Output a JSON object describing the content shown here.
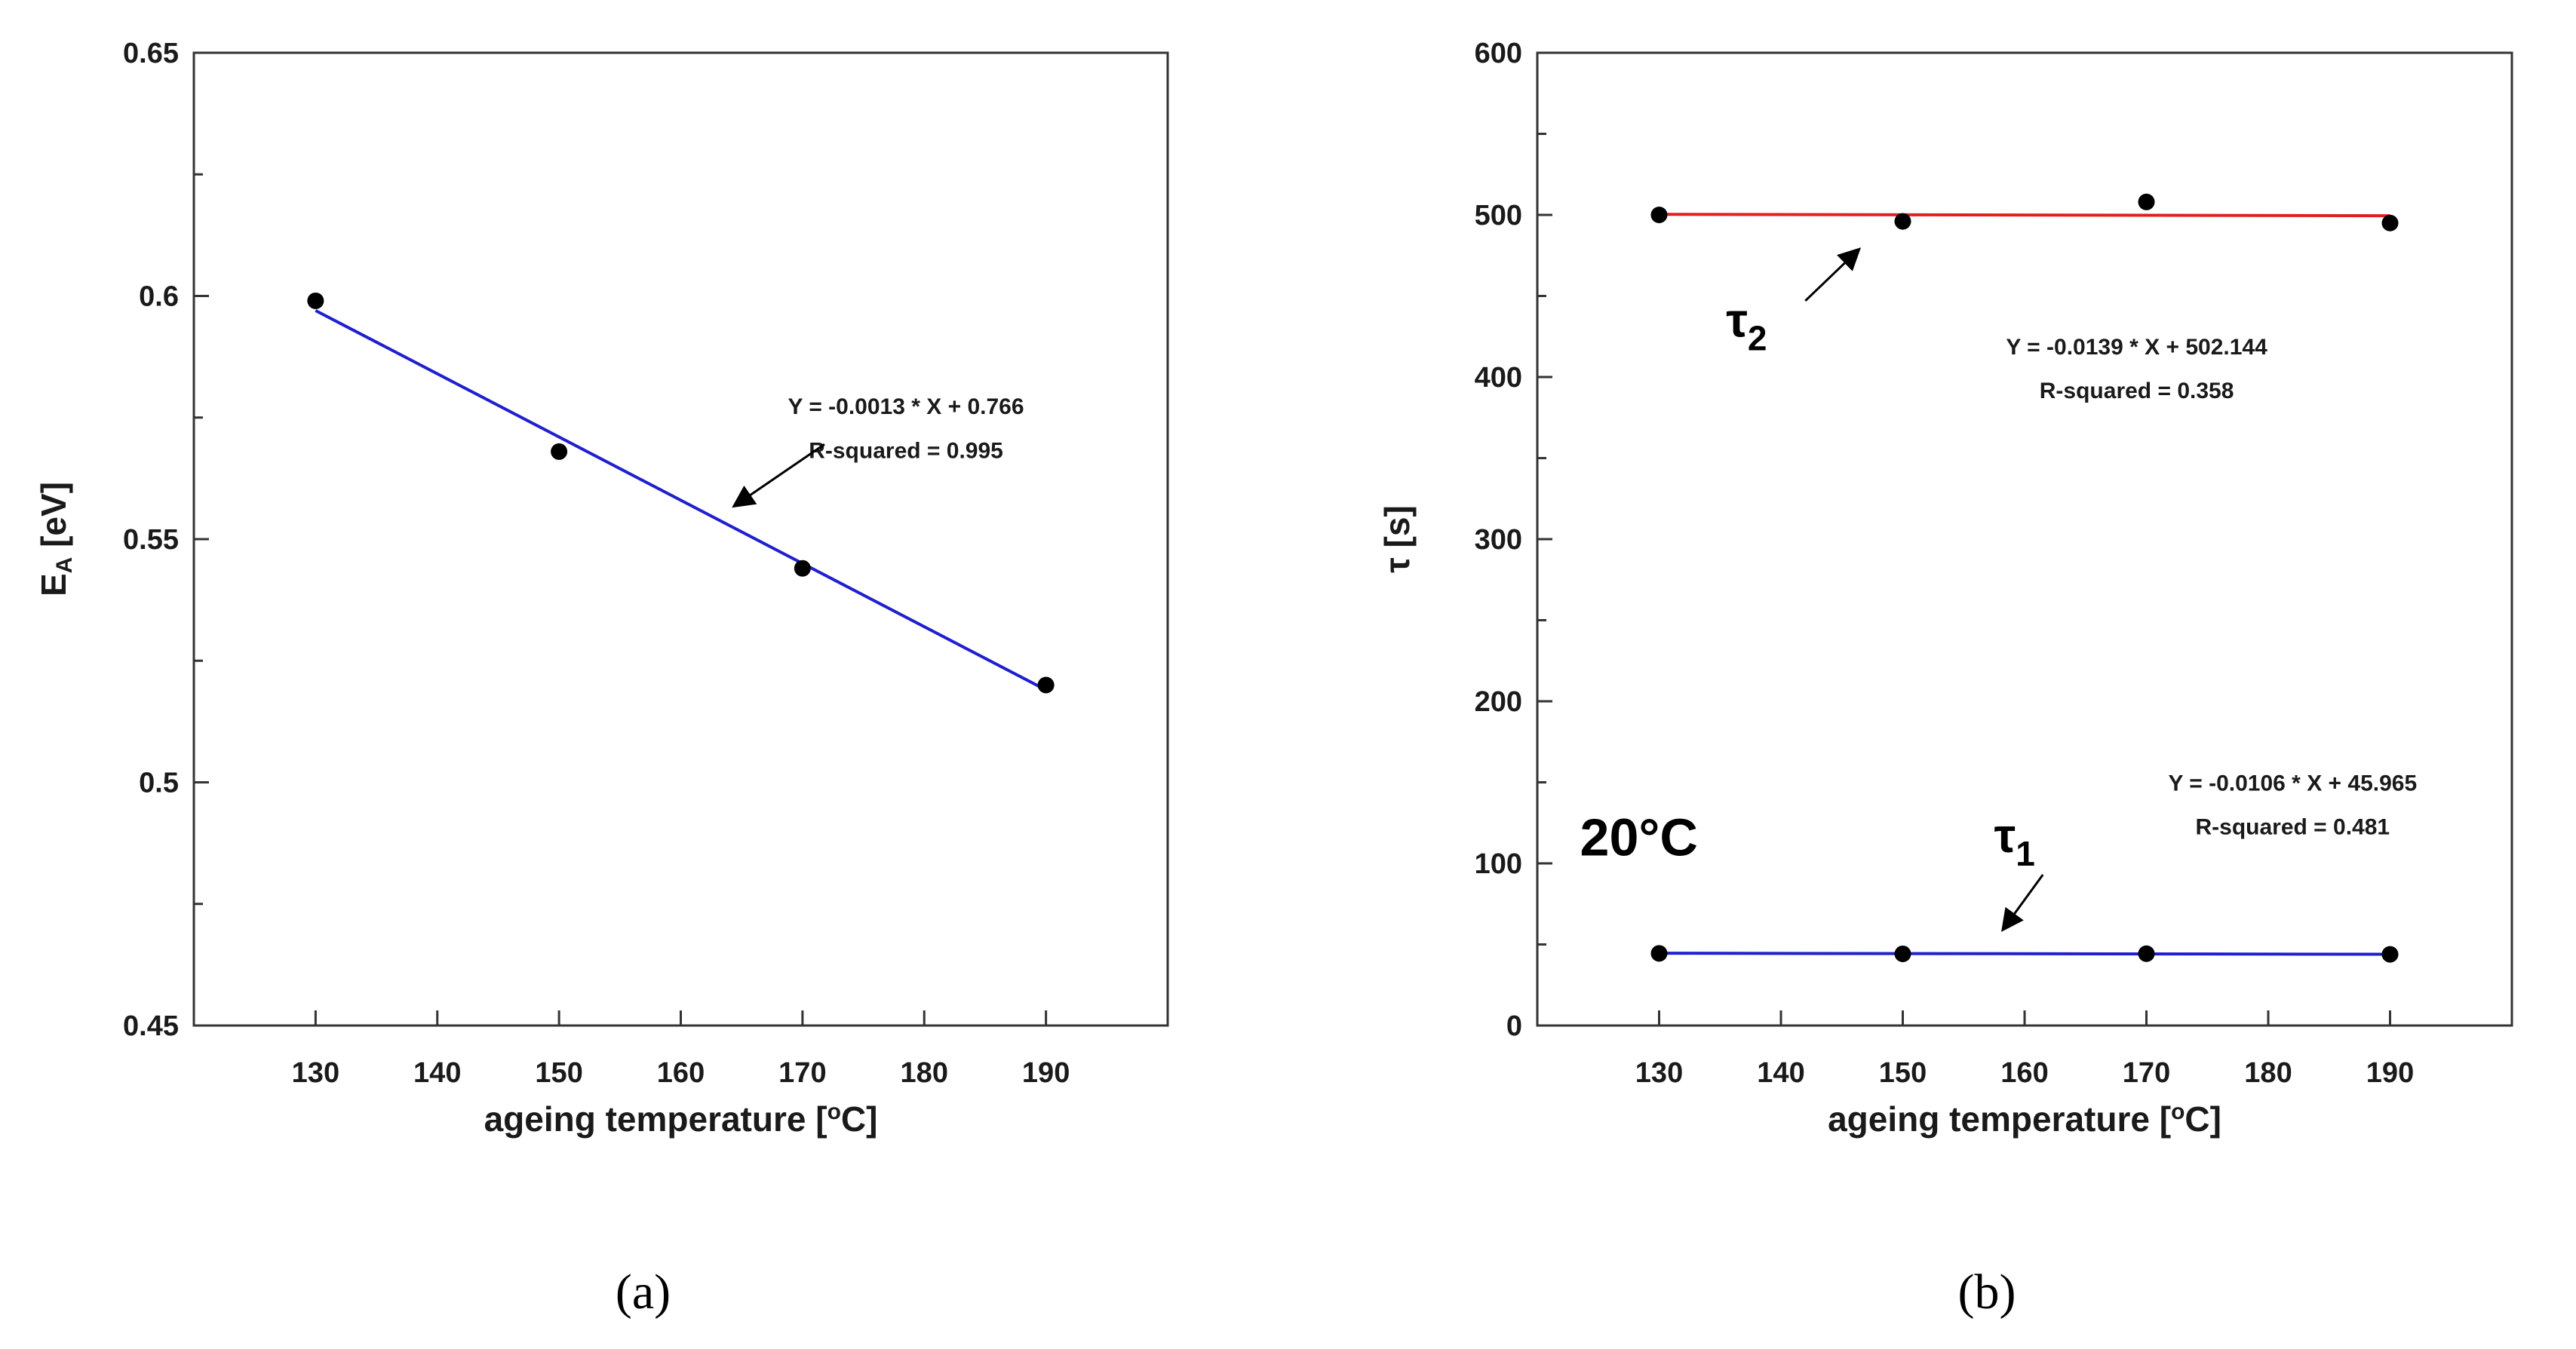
{
  "chart_data": [
    {
      "type": "scatter",
      "panel": "(a)",
      "xlabel": "ageing temperature [°C]",
      "xlabel_parts": {
        "main": "ageing temperature [",
        "sup": "o",
        "end": "C]"
      },
      "ylabel": "EA [eV]",
      "ylabel_parts": {
        "main": "E",
        "sub": "A",
        "end": " [eV]"
      },
      "xlim": [
        120,
        200
      ],
      "ylim": [
        0.45,
        0.65
      ],
      "xticks": [
        130,
        140,
        150,
        160,
        170,
        180,
        190
      ],
      "yticks": [
        0.45,
        0.5,
        0.55,
        0.6,
        0.65
      ],
      "ytick_labels": [
        "0.45",
        "0.5",
        "0.55",
        "0.6",
        "0.65"
      ],
      "series": [
        {
          "name": "EA",
          "x": [
            130,
            150,
            170,
            190
          ],
          "y": [
            0.599,
            0.568,
            0.544,
            0.52
          ],
          "marker_color": "#000000",
          "fit": {
            "slope": -0.0013,
            "intercept": 0.766,
            "x_range": [
              130,
              190
            ],
            "color": "#1f1fcf"
          },
          "equation": "Y = -0.0013 * X + 0.766",
          "r_squared": "R-squared = 0.995"
        }
      ]
    },
    {
      "type": "scatter",
      "panel": "(b)",
      "xlabel": "ageing temperature [°C]",
      "xlabel_parts": {
        "main": "ageing temperature [",
        "sup": "o",
        "end": "C]"
      },
      "ylabel": "τ [s]",
      "xlim": [
        120,
        200
      ],
      "ylim": [
        0,
        600
      ],
      "xticks": [
        130,
        140,
        150,
        160,
        170,
        180,
        190
      ],
      "yticks": [
        0,
        100,
        200,
        300,
        400,
        500,
        600
      ],
      "ytick_labels": [
        "0",
        "100",
        "200",
        "300",
        "400",
        "500",
        "600"
      ],
      "annotation_temp": "20°C",
      "series": [
        {
          "name": "τ2",
          "label_main": "τ",
          "label_sub": "2",
          "x": [
            130,
            150,
            170,
            190
          ],
          "y": [
            500,
            496,
            508,
            495
          ],
          "marker_color": "#000000",
          "fit": {
            "slope": -0.0139,
            "intercept": 502.144,
            "x_range": [
              130,
              190
            ],
            "color": "#e02020"
          },
          "equation": "Y = -0.0139 * X + 502.144",
          "r_squared": "R-squared = 0.358"
        },
        {
          "name": "τ1",
          "label_main": "τ",
          "label_sub": "1",
          "x": [
            130,
            150,
            170,
            190
          ],
          "y": [
            44.5,
            44.2,
            44.3,
            43.9
          ],
          "marker_color": "#000000",
          "fit": {
            "slope": -0.0106,
            "intercept": 45.965,
            "x_range": [
              130,
              190
            ],
            "color": "#1f1fcf"
          },
          "equation": "Y = -0.0106 * X + 45.965",
          "r_squared": "R-squared = 0.481"
        }
      ]
    }
  ]
}
